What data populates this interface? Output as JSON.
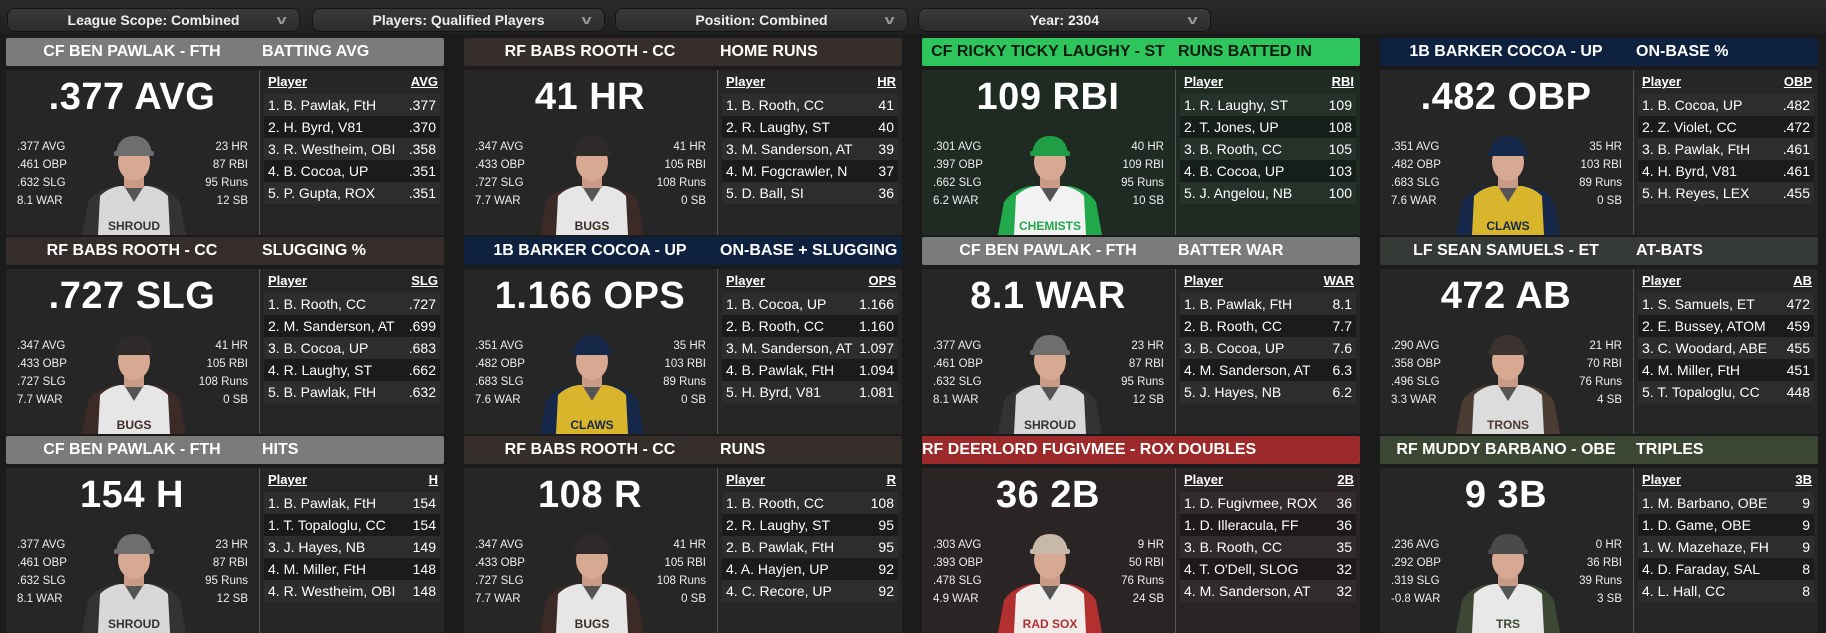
{
  "filters": [
    {
      "label": "League Scope: Combined",
      "icon": "chevron-down-icon"
    },
    {
      "label": "Players: Qualified Players",
      "icon": "chevron-down-icon"
    },
    {
      "label": "Position: Combined",
      "icon": "chevron-down-icon"
    },
    {
      "label": "Year: 2304",
      "icon": "chevron-down-icon"
    }
  ],
  "list_player_header": "Player",
  "cards": [
    {
      "player": "CF BEN PAWLAK - FTH",
      "stat_title": "BATTING AVG",
      "headline": ".377 AVG",
      "left": [
        ".377 AVG",
        ".461 OBP",
        ".632 SLG",
        "8.1 WAR"
      ],
      "right": [
        "23 HR",
        "87 RBI",
        "95 Runs",
        "12 SB"
      ],
      "col": "AVG",
      "rows": [
        {
          "p": "1. B. Pawlak, FtH",
          "v": ".377"
        },
        {
          "p": "2. H. Byrd, V81",
          "v": ".370"
        },
        {
          "p": "3. R. Westheim, OBI",
          "v": ".358"
        },
        {
          "p": "4. B. Cocoa, UP",
          "v": ".351"
        },
        {
          "p": "5. P. Gupta, ROX",
          "v": ".351"
        }
      ],
      "header_color": "#7b7b7b",
      "header_text": "#ffffff",
      "body_color": "#262626",
      "cap": "#6e6e6e",
      "jersey": "#d8d8d8",
      "trim": "#333333",
      "jersey_lettering": "SHROUD"
    },
    {
      "player": "RF BABS ROOTH - CC",
      "stat_title": "HOME RUNS",
      "headline": "41 HR",
      "left": [
        ".347 AVG",
        ".433 OBP",
        ".727 SLG",
        "7.7 WAR"
      ],
      "right": [
        "41 HR",
        "105 RBI",
        "108 Runs",
        "0 SB"
      ],
      "col": "HR",
      "rows": [
        {
          "p": "1. B. Rooth, CC",
          "v": "41"
        },
        {
          "p": "2. R. Laughy, ST",
          "v": "40"
        },
        {
          "p": "3. M. Sanderson, AT",
          "v": "39"
        },
        {
          "p": "4. M. Fogcrawler, N",
          "v": "37"
        },
        {
          "p": "5. D. Ball, SI",
          "v": "36"
        }
      ],
      "header_color": "#352d2a",
      "header_text": "#ffffff",
      "body_color": "#262626",
      "cap": "#2e2a2a",
      "jersey": "#e6e6e6",
      "trim": "#3b2a25",
      "jersey_lettering": "BUGS"
    },
    {
      "player": "CF RICKY TICKY LAUGHY - ST",
      "stat_title": "RUNS BATTED IN",
      "headline": "109 RBI",
      "left": [
        ".301 AVG",
        ".397 OBP",
        ".662 SLG",
        "6.2 WAR"
      ],
      "right": [
        "40 HR",
        "109 RBI",
        "95 Runs",
        "10 SB"
      ],
      "col": "RBI",
      "rows": [
        {
          "p": "1. R. Laughy, ST",
          "v": "109"
        },
        {
          "p": "2. T. Jones, UP",
          "v": "108"
        },
        {
          "p": "3. B. Rooth, CC",
          "v": "105"
        },
        {
          "p": "4. B. Cocoa, UP",
          "v": "103"
        },
        {
          "p": "5. J. Angelou, NB",
          "v": "100"
        }
      ],
      "header_color": "#2ec55c",
      "header_text": "#0c1a10",
      "body_color": "#1f2a23",
      "cap": "#1f9e45",
      "jersey": "#f2f2f2",
      "trim": "#22a94b",
      "jersey_lettering": "CHEMISTS"
    },
    {
      "player": "1B BARKER COCOA - UP",
      "stat_title": "ON-BASE %",
      "headline": ".482 OBP",
      "left": [
        ".351 AVG",
        ".482 OBP",
        ".683 SLG",
        "7.6 WAR"
      ],
      "right": [
        "35 HR",
        "103 RBI",
        "89 Runs",
        "0 SB"
      ],
      "col": "OBP",
      "rows": [
        {
          "p": "1. B. Cocoa, UP",
          "v": ".482"
        },
        {
          "p": "2. Z. Violet, CC",
          "v": ".472"
        },
        {
          "p": "3. B. Pawlak, FtH",
          "v": ".461"
        },
        {
          "p": "4. H. Byrd, V81",
          "v": ".461"
        },
        {
          "p": "5. H. Reyes, LEX",
          "v": ".455"
        }
      ],
      "header_color": "#0e2240",
      "header_text": "#ffffff",
      "body_color": "#262626",
      "cap": "#15284a",
      "jersey": "#d9b52c",
      "trim": "#15284a",
      "jersey_lettering": "CLAWS"
    },
    {
      "player": "RF BABS ROOTH - CC",
      "stat_title": "SLUGGING %",
      "headline": ".727 SLG",
      "left": [
        ".347 AVG",
        ".433 OBP",
        ".727 SLG",
        "7.7 WAR"
      ],
      "right": [
        "41 HR",
        "105 RBI",
        "108 Runs",
        "0 SB"
      ],
      "col": "SLG",
      "rows": [
        {
          "p": "1. B. Rooth, CC",
          "v": ".727"
        },
        {
          "p": "2. M. Sanderson, AT",
          "v": ".699"
        },
        {
          "p": "3. B. Cocoa, UP",
          "v": ".683"
        },
        {
          "p": "4. R. Laughy, ST",
          "v": ".662"
        },
        {
          "p": "5. B. Pawlak, FtH",
          "v": ".632"
        }
      ],
      "header_color": "#352d2a",
      "header_text": "#ffffff",
      "body_color": "#262626",
      "cap": "#2e2a2a",
      "jersey": "#e6e6e6",
      "trim": "#3b2a25",
      "jersey_lettering": "BUGS"
    },
    {
      "player": "1B BARKER COCOA - UP",
      "stat_title": "ON-BASE + SLUGGING",
      "headline": "1.166 OPS",
      "left": [
        ".351 AVG",
        ".482 OBP",
        ".683 SLG",
        "7.6 WAR"
      ],
      "right": [
        "35 HR",
        "103 RBI",
        "89 Runs",
        "0 SB"
      ],
      "col": "OPS",
      "rows": [
        {
          "p": "1. B. Cocoa, UP",
          "v": "1.166"
        },
        {
          "p": "2. B. Rooth, CC",
          "v": "1.160"
        },
        {
          "p": "3. M. Sanderson, AT",
          "v": "1.097"
        },
        {
          "p": "4. B. Pawlak, FtH",
          "v": "1.094"
        },
        {
          "p": "5. H. Byrd, V81",
          "v": "1.081"
        }
      ],
      "header_color": "#0e2240",
      "header_text": "#ffffff",
      "body_color": "#262626",
      "cap": "#15284a",
      "jersey": "#d9b52c",
      "trim": "#15284a",
      "jersey_lettering": "CLAWS"
    },
    {
      "player": "CF BEN PAWLAK - FTH",
      "stat_title": "BATTER WAR",
      "headline": "8.1 WAR",
      "left": [
        ".377 AVG",
        ".461 OBP",
        ".632 SLG",
        "8.1 WAR"
      ],
      "right": [
        "23 HR",
        "87 RBI",
        "95 Runs",
        "12 SB"
      ],
      "col": "WAR",
      "rows": [
        {
          "p": "1. B. Pawlak, FtH",
          "v": "8.1"
        },
        {
          "p": "2. B. Rooth, CC",
          "v": "7.7"
        },
        {
          "p": "3. B. Cocoa, UP",
          "v": "7.6"
        },
        {
          "p": "4. M. Sanderson, AT",
          "v": "6.3"
        },
        {
          "p": "5. J. Hayes, NB",
          "v": "6.2"
        }
      ],
      "header_color": "#7b7b7b",
      "header_text": "#ffffff",
      "body_color": "#262626",
      "cap": "#6e6e6e",
      "jersey": "#d8d8d8",
      "trim": "#333333",
      "jersey_lettering": "SHROUD"
    },
    {
      "player": "LF SEAN SAMUELS - ET",
      "stat_title": "AT-BATS",
      "headline": "472 AB",
      "left": [
        ".290 AVG",
        ".358 OBP",
        ".496 SLG",
        "3.3 WAR"
      ],
      "right": [
        "21 HR",
        "70 RBI",
        "76 Runs",
        "4 SB"
      ],
      "col": "AB",
      "rows": [
        {
          "p": "1. S. Samuels, ET",
          "v": "472"
        },
        {
          "p": "2. E. Bussey, ATOM",
          "v": "459"
        },
        {
          "p": "3. C. Woodard, ABE",
          "v": "455"
        },
        {
          "p": "4. M. Miller, FtH",
          "v": "451"
        },
        {
          "p": "5. T. Topaloglu, CC",
          "v": "448"
        }
      ],
      "header_color": "#363a37",
      "header_text": "#ffffff",
      "body_color": "#262626",
      "cap": "#3c3330",
      "jersey": "#dcdcdc",
      "trim": "#4a3b33",
      "jersey_lettering": "TRONS"
    },
    {
      "player": "CF BEN PAWLAK - FTH",
      "stat_title": "HITS",
      "headline": "154 H",
      "left": [
        ".377 AVG",
        ".461 OBP",
        ".632 SLG",
        "8.1 WAR"
      ],
      "right": [
        "23 HR",
        "87 RBI",
        "95 Runs",
        "12 SB"
      ],
      "col": "H",
      "rows": [
        {
          "p": "1. B. Pawlak, FtH",
          "v": "154"
        },
        {
          "p": "1. T. Topaloglu, CC",
          "v": "154"
        },
        {
          "p": "3. J. Hayes, NB",
          "v": "149"
        },
        {
          "p": "4. M. Miller, FtH",
          "v": "148"
        },
        {
          "p": "4. R. Westheim, OBI",
          "v": "148"
        }
      ],
      "header_color": "#7b7b7b",
      "header_text": "#ffffff",
      "body_color": "#262626",
      "cap": "#6e6e6e",
      "jersey": "#d8d8d8",
      "trim": "#333333",
      "jersey_lettering": "SHROUD"
    },
    {
      "player": "RF BABS ROOTH - CC",
      "stat_title": "RUNS",
      "headline": "108 R",
      "left": [
        ".347 AVG",
        ".433 OBP",
        ".727 SLG",
        "7.7 WAR"
      ],
      "right": [
        "41 HR",
        "105 RBI",
        "108 Runs",
        "0 SB"
      ],
      "col": "R",
      "rows": [
        {
          "p": "1. B. Rooth, CC",
          "v": "108"
        },
        {
          "p": "2. R. Laughy, ST",
          "v": "95"
        },
        {
          "p": "2. B. Pawlak, FtH",
          "v": "95"
        },
        {
          "p": "4. A. Hayjen, UP",
          "v": "92"
        },
        {
          "p": "4. C. Recore, UP",
          "v": "92"
        }
      ],
      "header_color": "#352d2a",
      "header_text": "#ffffff",
      "body_color": "#262626",
      "cap": "#2e2a2a",
      "jersey": "#e6e6e6",
      "trim": "#3b2a25",
      "jersey_lettering": "BUGS"
    },
    {
      "player": "RF DEERLORD FUGIVMEE - ROX",
      "stat_title": "DOUBLES",
      "headline": "36 2B",
      "left": [
        ".303 AVG",
        ".393 OBP",
        ".478 SLG",
        "4.9 WAR"
      ],
      "right": [
        "9 HR",
        "50 RBI",
        "76 Runs",
        "24 SB"
      ],
      "col": "2B",
      "rows": [
        {
          "p": "1. D. Fugivmee, ROX",
          "v": "36"
        },
        {
          "p": "1. D. Illeracula, FF",
          "v": "36"
        },
        {
          "p": "3. B. Rooth, CC",
          "v": "35"
        },
        {
          "p": "4. T. O'Dell, SLOG",
          "v": "32"
        },
        {
          "p": "4. M. Sanderson, AT",
          "v": "32"
        }
      ],
      "header_color": "#9c2a2a",
      "header_text": "#ffffff",
      "body_color": "#2a2424",
      "cap": "#c8b8a8",
      "jersey": "#f0ecea",
      "trim": "#b23030",
      "jersey_lettering": "RAD SOX"
    },
    {
      "player": "RF MUDDY BARBANO - OBE",
      "stat_title": "TRIPLES",
      "headline": "9 3B",
      "left": [
        ".236 AVG",
        ".292 OBP",
        ".319 SLG",
        "-0.8 WAR"
      ],
      "right": [
        "0 HR",
        "36 RBI",
        "39 Runs",
        "3 SB"
      ],
      "col": "3B",
      "rows": [
        {
          "p": "1. M. Barbano, OBE",
          "v": "9"
        },
        {
          "p": "1. D. Game, OBE",
          "v": "9"
        },
        {
          "p": "1. W. Mazehaze, FH",
          "v": "9"
        },
        {
          "p": "4. D. Faraday, SAL",
          "v": "8"
        },
        {
          "p": "4. L. Hall, CC",
          "v": "8"
        }
      ],
      "header_color": "#3b4733",
      "header_text": "#ffffff",
      "body_color": "#262626",
      "cap": "#4a4a4a",
      "jersey": "#e8e8e8",
      "trim": "#3b4733",
      "jersey_lettering": "TRS"
    }
  ]
}
